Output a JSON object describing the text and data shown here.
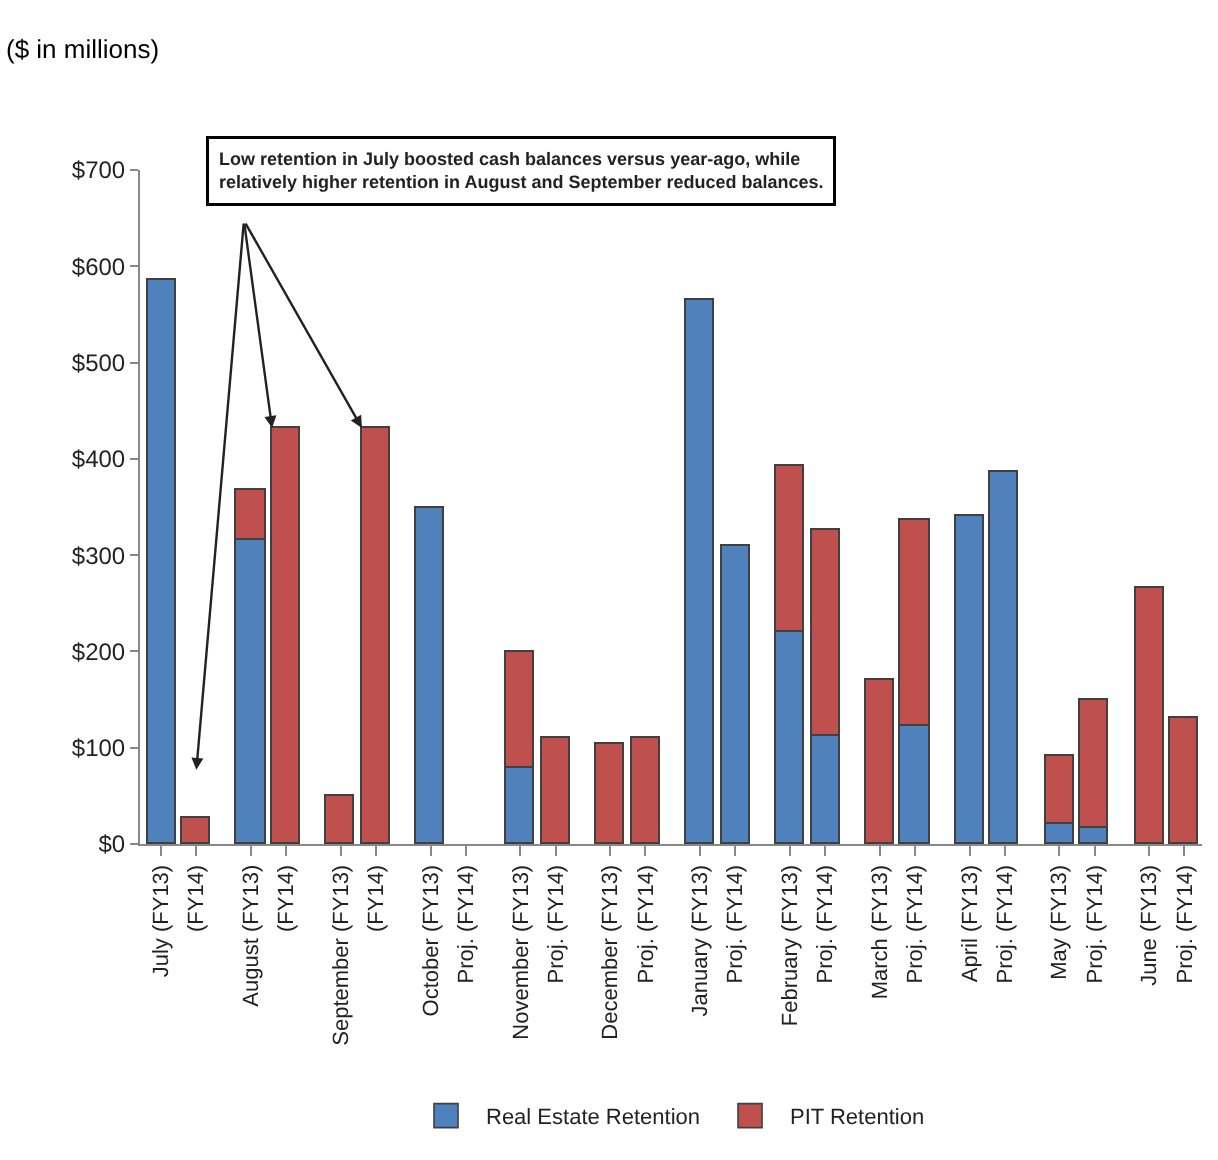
{
  "chart_data": {
    "type": "bar",
    "stacked": true,
    "subtitle": "($ in millions)",
    "categories": [
      "July (FY13)",
      "(FY14)",
      "August (FY13)",
      "(FY14)",
      "September (FY13)",
      "(FY14)",
      "October (FY13)",
      "Proj. (FY14)",
      "November (FY13)",
      "Proj. (FY14)",
      "December (FY13)",
      "Proj. (FY14)",
      "January (FY13)",
      "Proj. (FY14)",
      "February (FY13)",
      "Proj. (FY14)",
      "March (FY13)",
      "Proj. (FY14)",
      "April (FY13)",
      "Proj. (FY14)",
      "May (FY13)",
      "Proj. (FY14)",
      "June (FY13)",
      "Proj. (FY14)"
    ],
    "series": [
      {
        "name": "Real Estate Retention",
        "color": "#4f81bd",
        "values": [
          585,
          null,
          315,
          null,
          null,
          null,
          348,
          null,
          78,
          null,
          null,
          null,
          565,
          310,
          220,
          112,
          null,
          122,
          340,
          386,
          20,
          16,
          null,
          null
        ]
      },
      {
        "name": "PIT Retention",
        "color": "#c0504d",
        "values": [
          null,
          28,
          52,
          432,
          50,
          432,
          null,
          null,
          122,
          110,
          103,
          110,
          null,
          null,
          172,
          215,
          170,
          215,
          null,
          null,
          72,
          133,
          265,
          130
        ]
      }
    ],
    "ylim": [
      0,
      700
    ],
    "yticks": [
      {
        "value": 0,
        "label": "$0"
      },
      {
        "value": 100,
        "label": "$100"
      },
      {
        "value": 200,
        "label": "$200"
      },
      {
        "value": 300,
        "label": "$300"
      },
      {
        "value": 400,
        "label": "$400"
      },
      {
        "value": 500,
        "label": "$500"
      },
      {
        "value": 600,
        "label": "$600"
      },
      {
        "value": 700,
        "label": "$700"
      }
    ],
    "grid": false,
    "legend": "bottom",
    "annotations": [
      "Low retention in July boosted cash balances versus year-ago, while\nrelatively higher retention in August and September reduced balances."
    ]
  }
}
